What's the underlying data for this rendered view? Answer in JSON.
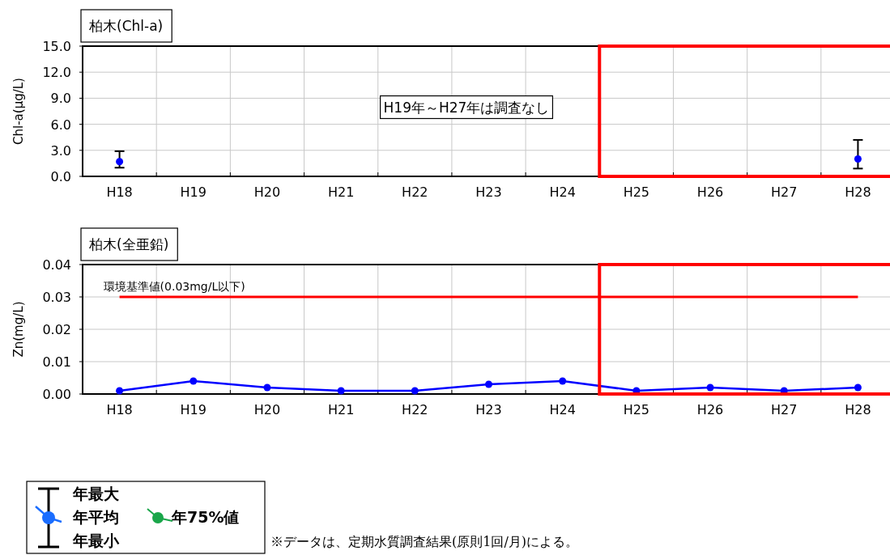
{
  "chart_data": [
    {
      "type": "scatter",
      "title": "柏木(Chl-a)",
      "ylabel": "Chl-a(μg/L)",
      "categories": [
        "H18",
        "H19",
        "H20",
        "H21",
        "H22",
        "H23",
        "H24",
        "H25",
        "H26",
        "H27",
        "H28"
      ],
      "series": [
        {
          "color": "#0000ff",
          "values": [
            1.7,
            null,
            null,
            null,
            null,
            null,
            null,
            null,
            null,
            null,
            2.0
          ],
          "errors": [
            [
              1.0,
              2.9
            ],
            null,
            null,
            null,
            null,
            null,
            null,
            null,
            null,
            null,
            [
              0.9,
              4.2
            ]
          ]
        }
      ],
      "ylim": [
        0,
        15
      ],
      "yticks": [
        {
          "value": 0,
          "label": "0.0"
        },
        {
          "value": 3,
          "label": "3.0"
        },
        {
          "value": 6,
          "label": "6.0"
        },
        {
          "value": 9,
          "label": "9.0"
        },
        {
          "value": 12,
          "label": "12.0"
        },
        {
          "value": 15,
          "label": "15.0"
        }
      ],
      "grid": true,
      "marker": "circle",
      "annotations": [
        "H19年～H27年は調査なし"
      ]
    },
    {
      "type": "line",
      "title": "柏木(全亜鉛)",
      "ylabel": "Zn(mg/L)",
      "categories": [
        "H18",
        "H19",
        "H20",
        "H21",
        "H22",
        "H23",
        "H24",
        "H25",
        "H26",
        "H27",
        "H28"
      ],
      "series": [
        {
          "color": "#0000ff",
          "values": [
            0.001,
            0.004,
            0.002,
            0.001,
            0.001,
            0.003,
            0.004,
            0.001,
            0.002,
            0.001,
            0.002
          ]
        }
      ],
      "ylim": [
        0,
        0.04
      ],
      "yticks": [
        {
          "value": 0,
          "label": "0.00"
        },
        {
          "value": 0.01,
          "label": "0.01"
        },
        {
          "value": 0.02,
          "label": "0.02"
        },
        {
          "value": 0.03,
          "label": "0.03"
        },
        {
          "value": 0.04,
          "label": "0.04"
        }
      ],
      "grid": true,
      "marker": "circle",
      "ref_lines": [
        {
          "axis": "y",
          "value": 0.03,
          "label": "環境基準値(0.03mg/L以下)",
          "color": "#ff0000"
        }
      ]
    },
    {
      "type": "other",
      "annotations": [
        "年最大",
        "年平均",
        "年最小",
        "年75%値",
        "※データは、定期水質調査結果(原則1回/月)による。"
      ]
    }
  ]
}
